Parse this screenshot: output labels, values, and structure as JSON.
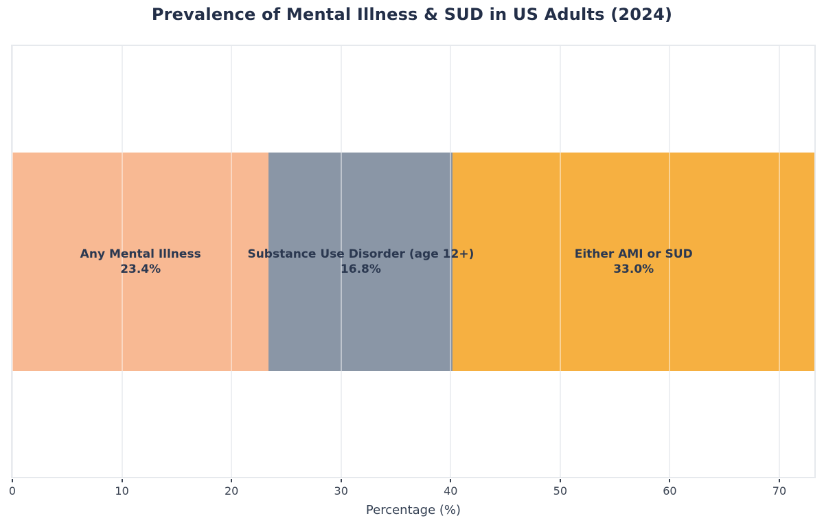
{
  "title": "Prevalence of Mental Illness & SUD in US Adults (2024)",
  "chart_data": {
    "type": "bar",
    "subtype": "horizontal_stacked_single_bar",
    "title": "Prevalence of Mental Illness & SUD in US Adults (2024)",
    "xlabel": "Percentage (%)",
    "ylabel": "",
    "xlim": [
      0,
      73.2
    ],
    "xticks": [
      0,
      10,
      20,
      30,
      40,
      50,
      60,
      70
    ],
    "grid": true,
    "legend_position": "none",
    "segments": [
      {
        "label": "Any Mental Illness",
        "value": 23.4,
        "value_label": "23.4%",
        "color": "#F8B993"
      },
      {
        "label": "Substance Use Disorder (age 12+)",
        "value": 16.8,
        "value_label": "16.8%",
        "color": "#8A96A6"
      },
      {
        "label": "Either AMI or SUD",
        "value": 33.0,
        "value_label": "33.0%",
        "color": "#F6B041"
      }
    ]
  },
  "colors": {
    "title_text": "#232F48",
    "segment_label_text": "#2B3850",
    "tick_text": "#3B4453",
    "axis_label_text": "#333F52",
    "gridline_under": "#EDEFF2",
    "gridline_over_bar": "rgba(255,255,255,0.45)",
    "tick_mark": "#3B4453",
    "plot_border": "#E6E9ED",
    "background": "#FFFFFF"
  }
}
